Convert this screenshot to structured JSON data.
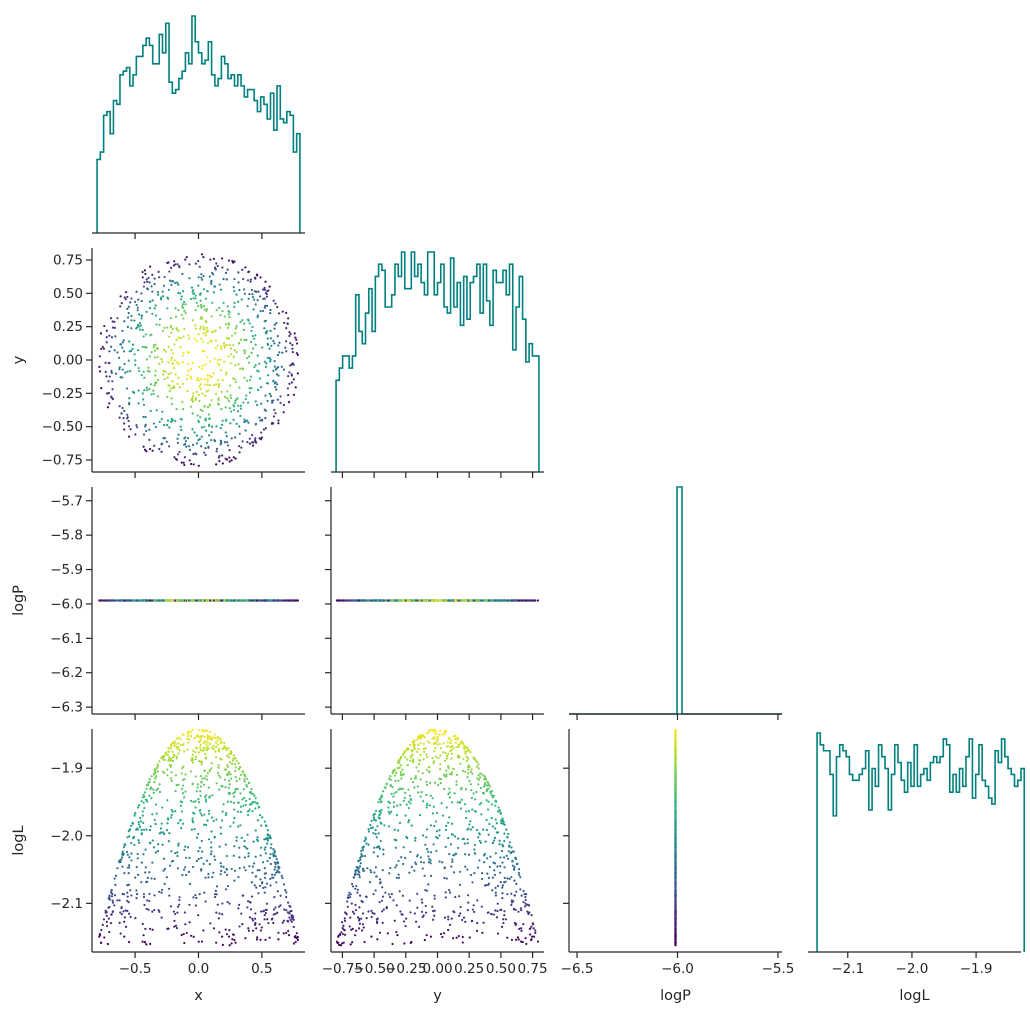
{
  "chart_data": {
    "type": "scatter",
    "variables": [
      "x",
      "y",
      "logP",
      "logL"
    ],
    "layout": "corner-pairplot",
    "diagonal": "step-histogram",
    "off_diagonal": "scatter",
    "color_by": "logL",
    "colormap": [
      "#440154",
      "#3b528b",
      "#21918c",
      "#5ec962",
      "#fde725"
    ],
    "hist_color": "#008080",
    "axes": {
      "x": {
        "label": "x",
        "range": [
          -0.84,
          0.84
        ],
        "ticks": [
          -0.5,
          0.0,
          0.5
        ],
        "tick_labels": [
          "−0.5",
          "0.0",
          "0.5"
        ]
      },
      "y": {
        "label": "y",
        "range": [
          -0.84,
          0.84
        ],
        "ticks": [
          -0.75,
          -0.5,
          -0.25,
          0.0,
          0.25,
          0.5,
          0.75
        ],
        "tick_labels": [
          "−0.75",
          "−0.50",
          "−0.25",
          "0.00",
          "0.25",
          "0.50",
          "0.75"
        ]
      },
      "logP": {
        "label": "logP",
        "range": [
          -6.32,
          -5.66
        ],
        "hist_range": [
          -6.54,
          -5.48
        ],
        "ticks": [
          -6.3,
          -6.2,
          -6.1,
          -6.0,
          -5.9,
          -5.8,
          -5.7
        ],
        "tick_labels": [
          "−6.3",
          "−6.2",
          "−6.1",
          "−6.0",
          "−5.9",
          "−5.8",
          "−5.7"
        ],
        "bottom_ticks": [
          -6.5,
          -6.0,
          -5.5
        ],
        "bottom_tick_labels": [
          "−6.5",
          "−6.0",
          "−5.5"
        ],
        "constant_value": -5.99
      },
      "logL": {
        "label": "logL",
        "range": [
          -2.172,
          -1.842
        ],
        "ticks": [
          -2.1,
          -2.0,
          -1.9
        ],
        "tick_labels": [
          "−2.1",
          "−2.0",
          "−1.9"
        ],
        "bottom_ticks": [
          -2.1,
          -2.0,
          -1.9
        ],
        "bottom_tick_labels": [
          "−2.1",
          "−2.0",
          "−1.9"
        ]
      }
    },
    "histograms": {
      "x": {
        "range": [
          -0.8,
          0.8
        ],
        "counts": [
          20,
          22,
          32,
          33,
          27,
          36,
          35,
          43,
          44,
          45,
          40,
          43,
          48,
          48,
          51,
          53,
          51,
          46,
          46,
          54,
          49,
          57,
          41,
          38,
          39,
          42,
          44,
          49,
          46,
          59,
          52,
          49,
          46,
          47,
          52,
          43,
          40,
          42,
          48,
          46,
          42,
          43,
          40,
          43,
          40,
          37,
          39,
          39,
          36,
          33,
          37,
          35,
          31,
          38,
          28,
          40,
          31,
          30,
          33,
          32,
          22,
          27
        ]
      },
      "y": {
        "range": [
          -0.8,
          0.8
        ],
        "counts": [
          15,
          17,
          19,
          19,
          17,
          19,
          29,
          23,
          21,
          26,
          30,
          23,
          32,
          34,
          33,
          27,
          27,
          29,
          34,
          32,
          36,
          30,
          30,
          36,
          32,
          34,
          31,
          29,
          36,
          36,
          29,
          31,
          34,
          27,
          26,
          35,
          27,
          31,
          24,
          32,
          25,
          31,
          32,
          34,
          26,
          34,
          28,
          24,
          33,
          31,
          31,
          33,
          29,
          34,
          20,
          27,
          32,
          25,
          18,
          21,
          19,
          19
        ]
      },
      "logP": {
        "centers": [
          -5.99
        ],
        "counts": [
          1000
        ]
      },
      "logL": {
        "range": [
          -2.158,
          -1.837
        ],
        "counts": [
          37,
          35,
          34,
          34,
          30,
          23,
          33,
          35,
          34,
          33,
          30,
          29,
          29,
          30,
          31,
          34,
          24,
          31,
          28,
          35,
          33,
          31,
          24,
          30,
          35,
          32,
          29,
          27,
          32,
          28,
          35,
          28,
          30,
          31,
          29,
          32,
          33,
          32,
          33,
          36,
          35,
          27,
          30,
          27,
          31,
          28,
          33,
          36,
          26,
          30,
          35,
          29,
          28,
          26,
          25,
          34,
          32,
          36,
          33,
          31,
          30,
          28,
          29,
          31
        ]
      }
    }
  }
}
